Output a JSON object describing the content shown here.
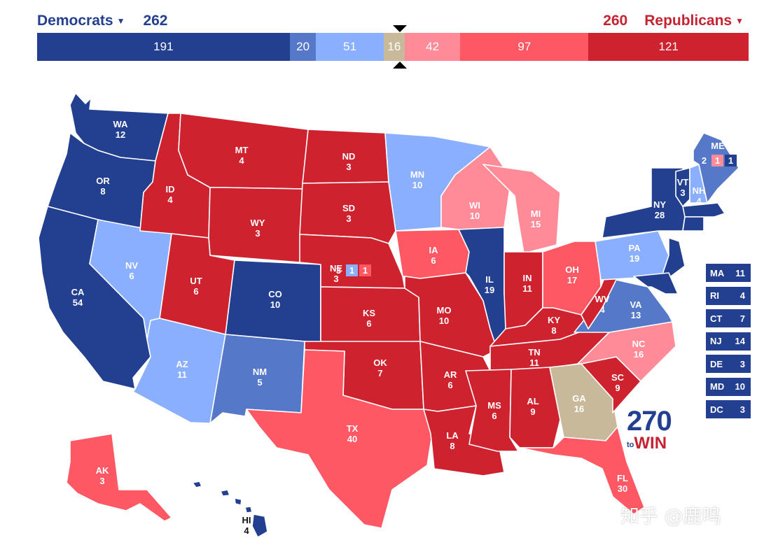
{
  "header": {
    "dem_label": "Democrats",
    "dem_total": "262",
    "rep_label": "Republicans",
    "rep_total": "260",
    "caret_icon": "caret-down-icon"
  },
  "colors": {
    "safe_dem": "#233f8f",
    "likely_dem": "#5578c8",
    "lean_dem": "#8aafff",
    "tossup": "#c7b999",
    "lean_rep": "#ff8b98",
    "likely_rep": "#ff5865",
    "safe_rep": "#cf222f"
  },
  "bar": [
    {
      "value": "191",
      "rating": "safe_dem",
      "frac": 191
    },
    {
      "value": "20",
      "rating": "likely_dem",
      "frac": 20
    },
    {
      "value": "51",
      "rating": "lean_dem",
      "frac": 51
    },
    {
      "value": "16",
      "rating": "tossup",
      "frac": 16
    },
    {
      "value": "42",
      "rating": "lean_rep",
      "frac": 42
    },
    {
      "value": "97",
      "rating": "likely_rep",
      "frac": 97
    },
    {
      "value": "121",
      "rating": "safe_rep",
      "frac": 121
    }
  ],
  "states": [
    {
      "abbr": "WA",
      "ev": "12",
      "rating": "safe_dem"
    },
    {
      "abbr": "OR",
      "ev": "8",
      "rating": "safe_dem"
    },
    {
      "abbr": "CA",
      "ev": "54",
      "rating": "safe_dem"
    },
    {
      "abbr": "NV",
      "ev": "6",
      "rating": "lean_dem"
    },
    {
      "abbr": "ID",
      "ev": "4",
      "rating": "safe_rep"
    },
    {
      "abbr": "MT",
      "ev": "4",
      "rating": "safe_rep"
    },
    {
      "abbr": "WY",
      "ev": "3",
      "rating": "safe_rep"
    },
    {
      "abbr": "UT",
      "ev": "6",
      "rating": "safe_rep"
    },
    {
      "abbr": "AZ",
      "ev": "11",
      "rating": "lean_dem"
    },
    {
      "abbr": "CO",
      "ev": "10",
      "rating": "safe_dem"
    },
    {
      "abbr": "NM",
      "ev": "5",
      "rating": "likely_dem"
    },
    {
      "abbr": "ND",
      "ev": "3",
      "rating": "safe_rep"
    },
    {
      "abbr": "SD",
      "ev": "3",
      "rating": "safe_rep"
    },
    {
      "abbr": "NE",
      "ev": "3",
      "rating": "safe_rep"
    },
    {
      "abbr": "KS",
      "ev": "6",
      "rating": "safe_rep"
    },
    {
      "abbr": "OK",
      "ev": "7",
      "rating": "safe_rep"
    },
    {
      "abbr": "TX",
      "ev": "40",
      "rating": "likely_rep"
    },
    {
      "abbr": "MN",
      "ev": "10",
      "rating": "lean_dem"
    },
    {
      "abbr": "IA",
      "ev": "6",
      "rating": "likely_rep"
    },
    {
      "abbr": "MO",
      "ev": "10",
      "rating": "safe_rep"
    },
    {
      "abbr": "AR",
      "ev": "6",
      "rating": "safe_rep"
    },
    {
      "abbr": "LA",
      "ev": "8",
      "rating": "safe_rep"
    },
    {
      "abbr": "WI",
      "ev": "10",
      "rating": "lean_rep"
    },
    {
      "abbr": "IL",
      "ev": "19",
      "rating": "safe_dem"
    },
    {
      "abbr": "MI",
      "ev": "15",
      "rating": "lean_rep"
    },
    {
      "abbr": "IN",
      "ev": "11",
      "rating": "safe_rep"
    },
    {
      "abbr": "OH",
      "ev": "17",
      "rating": "likely_rep"
    },
    {
      "abbr": "KY",
      "ev": "8",
      "rating": "safe_rep"
    },
    {
      "abbr": "TN",
      "ev": "11",
      "rating": "safe_rep"
    },
    {
      "abbr": "MS",
      "ev": "6",
      "rating": "safe_rep"
    },
    {
      "abbr": "AL",
      "ev": "9",
      "rating": "safe_rep"
    },
    {
      "abbr": "GA",
      "ev": "16",
      "rating": "tossup"
    },
    {
      "abbr": "FL",
      "ev": "30",
      "rating": "likely_rep"
    },
    {
      "abbr": "SC",
      "ev": "9",
      "rating": "safe_rep"
    },
    {
      "abbr": "NC",
      "ev": "16",
      "rating": "lean_rep"
    },
    {
      "abbr": "VA",
      "ev": "13",
      "rating": "likely_dem"
    },
    {
      "abbr": "WV",
      "ev": "4",
      "rating": "safe_rep"
    },
    {
      "abbr": "PA",
      "ev": "19",
      "rating": "lean_dem"
    },
    {
      "abbr": "NY",
      "ev": "28",
      "rating": "safe_dem"
    },
    {
      "abbr": "VT",
      "ev": "3",
      "rating": "safe_dem"
    },
    {
      "abbr": "NH",
      "ev": "4",
      "rating": "lean_dem"
    },
    {
      "abbr": "ME",
      "ev": "1",
      "rating": "likely_dem"
    },
    {
      "abbr": "AK",
      "ev": "3",
      "rating": "likely_rep"
    },
    {
      "abbr": "HI",
      "ev": "4",
      "rating": "safe_dem"
    }
  ],
  "me_districts": [
    {
      "ev": "2",
      "rating": "likely_dem"
    },
    {
      "ev": "1",
      "rating": "lean_rep"
    },
    {
      "ev": "1",
      "rating": "safe_dem"
    }
  ],
  "ne_districts": [
    {
      "ev": "3",
      "rating": "safe_rep"
    },
    {
      "ev": "1",
      "rating": "lean_dem"
    },
    {
      "ev": "1",
      "rating": "likely_rep"
    }
  ],
  "small_states": [
    {
      "abbr": "MA",
      "ev": "11",
      "rating": "safe_dem"
    },
    {
      "abbr": "RI",
      "ev": "4",
      "rating": "safe_dem"
    },
    {
      "abbr": "CT",
      "ev": "7",
      "rating": "safe_dem"
    },
    {
      "abbr": "NJ",
      "ev": "14",
      "rating": "safe_dem"
    },
    {
      "abbr": "DE",
      "ev": "3",
      "rating": "safe_dem"
    },
    {
      "abbr": "MD",
      "ev": "10",
      "rating": "safe_dem"
    },
    {
      "abbr": "DC",
      "ev": "3",
      "rating": "safe_dem"
    }
  ],
  "logo": {
    "number": "270",
    "to": "to",
    "win": "WIN"
  },
  "watermark": "知乎 @鹿鸣"
}
